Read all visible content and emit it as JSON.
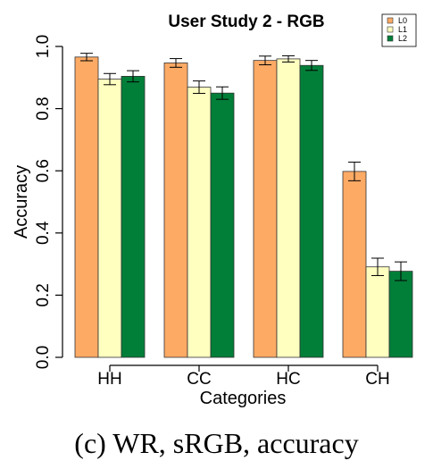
{
  "chart_data": {
    "type": "bar",
    "title": "User Study 2 - RGB",
    "xlabel": "Categories",
    "ylabel": "Accuracy",
    "ylim": [
      0,
      1
    ],
    "yticks": [
      "0.0",
      "0.2",
      "0.4",
      "0.6",
      "0.8",
      "1.0"
    ],
    "categories": [
      "HH",
      "CC",
      "HC",
      "CH"
    ],
    "legend_position": "top-right",
    "series": [
      {
        "name": "L0",
        "color": "#fdaa65",
        "values": [
          0.966,
          0.947,
          0.955,
          0.598
        ],
        "errors": [
          0.012,
          0.014,
          0.014,
          0.03
        ]
      },
      {
        "name": "L1",
        "color": "#ffffc0",
        "values": [
          0.895,
          0.869,
          0.96,
          0.291
        ],
        "errors": [
          0.018,
          0.02,
          0.01,
          0.028
        ]
      },
      {
        "name": "L2",
        "color": "#017f39",
        "values": [
          0.904,
          0.85,
          0.939,
          0.277
        ],
        "errors": [
          0.018,
          0.02,
          0.016,
          0.03
        ]
      }
    ]
  },
  "caption": "(c)  WR, sRGB, accuracy"
}
